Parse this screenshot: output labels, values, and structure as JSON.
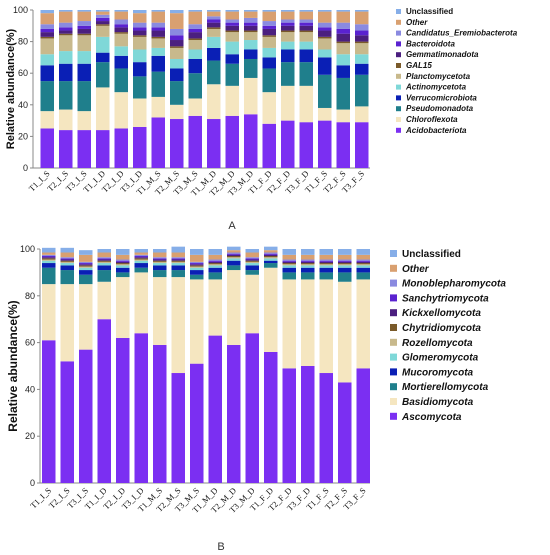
{
  "chart_data": [
    {
      "type": "bar",
      "stacked": true,
      "panel_label": "A",
      "ylabel": "Relative abundance(%)",
      "ylim": [
        0,
        100
      ],
      "yticks": [
        0,
        20,
        40,
        60,
        80,
        100
      ],
      "categories": [
        "T1_I_S",
        "T2_I_S",
        "T3_I_S",
        "T1_I_D",
        "T2_I_D",
        "T3_I_D",
        "T1_M_S",
        "T2_M_S",
        "T3_M_S",
        "T1_M_D",
        "T2_M_D",
        "T3_M_D",
        "T1_F_D",
        "T2_F_D",
        "T3_F_D",
        "T1_F_S",
        "T2_F_S",
        "T3_F_S"
      ],
      "legend_order": [
        "Unclassified",
        "Other",
        "Candidatus_Eremiobacterota",
        "Bacteroidota",
        "Gemmatimonadota",
        "GAL15",
        "Planctomycetota",
        "Actinomycetota",
        "Verrucomicrobiota",
        "Pseudomonadota",
        "Chloroflexota",
        "Acidobacteriota"
      ],
      "legend_italic": true,
      "series": [
        {
          "name": "Acidobacteriota",
          "color": "#7b2ff2",
          "values": [
            25,
            24,
            24,
            24,
            25,
            26,
            32,
            31,
            33,
            31,
            33,
            34,
            28,
            30,
            29,
            30,
            29,
            29
          ]
        },
        {
          "name": "Chloroflexota",
          "color": "#f5e6c0",
          "values": [
            11,
            13,
            12,
            27,
            23,
            18,
            13,
            9,
            11,
            22,
            19,
            23,
            20,
            22,
            23,
            8,
            8,
            10
          ]
        },
        {
          "name": "Pseudomonadota",
          "color": "#1f7f8c",
          "values": [
            19,
            18,
            19,
            16,
            15,
            14,
            16,
            15,
            16,
            15,
            14,
            12,
            15,
            15,
            15,
            21,
            20,
            20
          ]
        },
        {
          "name": "Verrucomicrobiota",
          "color": "#0a1fb5",
          "values": [
            10,
            11,
            11,
            6,
            8,
            9,
            10,
            8,
            9,
            8,
            6,
            6,
            7,
            8,
            8,
            11,
            8,
            7
          ]
        },
        {
          "name": "Actinomycetota",
          "color": "#7fd8d8",
          "values": [
            7,
            8,
            8,
            10,
            6,
            8,
            5,
            6,
            6,
            7,
            8,
            6,
            6,
            5,
            5,
            5,
            7,
            6
          ]
        },
        {
          "name": "Planctomycetota",
          "color": "#c8b98c",
          "values": [
            10,
            10,
            10,
            7,
            8,
            8,
            6,
            7,
            6,
            5,
            6,
            5,
            7,
            6,
            6,
            7,
            7,
            7
          ]
        },
        {
          "name": "GAL15",
          "color": "#7a5a2a",
          "values": [
            1,
            1,
            1,
            1,
            1,
            1,
            1,
            1,
            1,
            1,
            1,
            1,
            1,
            1,
            1,
            1,
            1,
            1
          ]
        },
        {
          "name": "Gemmatimonadota",
          "color": "#4b1f7f",
          "values": [
            3,
            2,
            3,
            2,
            3,
            3,
            4,
            4,
            4,
            3,
            3,
            3,
            4,
            3,
            3,
            4,
            5,
            4
          ]
        },
        {
          "name": "Bacteroidota",
          "color": "#5a22d0",
          "values": [
            2,
            2,
            2,
            2,
            2,
            2,
            2,
            3,
            2,
            2,
            2,
            2,
            2,
            2,
            2,
            2,
            3,
            3
          ]
        },
        {
          "name": "Candidatus_Eremiobacterota",
          "color": "#8a8ae0",
          "values": [
            3,
            3,
            3,
            2,
            3,
            3,
            3,
            4,
            3,
            2,
            2,
            3,
            3,
            2,
            2,
            3,
            4,
            4
          ]
        },
        {
          "name": "Other",
          "color": "#d9a070",
          "values": [
            7,
            7,
            6,
            2,
            5,
            6,
            7,
            10,
            8,
            3,
            5,
            4,
            6,
            5,
            5,
            7,
            7,
            8
          ]
        },
        {
          "name": "Unclassified",
          "color": "#86aee8",
          "values": [
            2,
            1,
            1,
            1,
            1,
            2,
            1,
            2,
            1,
            1,
            1,
            1,
            1,
            1,
            1,
            1,
            1,
            1
          ]
        }
      ]
    },
    {
      "type": "bar",
      "stacked": true,
      "panel_label": "B",
      "ylabel": "Relative abundance(%)",
      "ylim": [
        0,
        100
      ],
      "yticks": [
        0,
        20,
        40,
        60,
        80,
        100
      ],
      "categories": [
        "T1_I_S",
        "T2_I_S",
        "T3_I_S",
        "T1_I_D",
        "T2_I_D",
        "T3_I_D",
        "T1_M_S",
        "T2_M_S",
        "T3_M_S",
        "T1_M_D",
        "T2_M_D",
        "T3_M_D",
        "T1_F_D",
        "T2_F_D",
        "T3_F_D",
        "T1_F_S",
        "T2_F_S",
        "T3_F_S"
      ],
      "legend_order": [
        "Unclassified",
        "Other",
        "Monoblepharomycota",
        "Sanchytriomycota",
        "Kickxellomycota",
        "Chytridiomycota",
        "Rozellomycota",
        "Glomeromycota",
        "Mucoromycota",
        "Mortierellomycota",
        "Basidiomycota",
        "Ascomycota"
      ],
      "legend_italic": true,
      "series": [
        {
          "name": "Ascomycota",
          "color": "#7b2ff2",
          "values": [
            61,
            52,
            57,
            70,
            62,
            64,
            59,
            47,
            51,
            63,
            59,
            64,
            56,
            49,
            50,
            47,
            43,
            49
          ]
        },
        {
          "name": "Basidiomycota",
          "color": "#f5e6c0",
          "values": [
            24,
            33,
            28,
            16,
            26,
            26,
            29,
            41,
            36,
            24,
            32,
            25,
            36,
            38,
            37,
            40,
            43,
            38
          ]
        },
        {
          "name": "Mortierellomycota",
          "color": "#1f7f8c",
          "values": [
            7,
            6,
            4,
            5,
            2,
            2,
            3,
            3,
            2,
            3,
            2,
            2,
            2,
            3,
            3,
            3,
            4,
            3
          ]
        },
        {
          "name": "Mucoromycota",
          "color": "#0a1fb5",
          "values": [
            2,
            2,
            2,
            2,
            2,
            2,
            2,
            2,
            2,
            2,
            2,
            2,
            1,
            2,
            2,
            2,
            2,
            2
          ]
        },
        {
          "name": "Glomeromycota",
          "color": "#7fd8d8",
          "values": [
            1,
            1,
            1,
            1,
            1,
            1,
            1,
            1,
            1,
            1,
            1,
            1,
            1,
            1,
            1,
            1,
            1,
            1
          ]
        },
        {
          "name": "Rozellomycota",
          "color": "#c8b98c",
          "values": [
            0.5,
            0.5,
            0.5,
            0.5,
            0.5,
            0.5,
            0.5,
            0.5,
            0.5,
            0.5,
            0.5,
            0.5,
            0.5,
            0.5,
            0.5,
            0.5,
            0.5,
            0.5
          ]
        },
        {
          "name": "Chytridiomycota",
          "color": "#7a5a2a",
          "values": [
            0.5,
            0.5,
            0.5,
            0.5,
            0.5,
            0.5,
            0.5,
            0.5,
            0.5,
            0.5,
            0.5,
            0.5,
            0.5,
            0.5,
            0.5,
            0.5,
            0.5,
            0.5
          ]
        },
        {
          "name": "Kickxellomycota",
          "color": "#4b1f7f",
          "values": [
            0.5,
            0.5,
            0.5,
            0.5,
            0.5,
            0.5,
            0.5,
            0.5,
            0.5,
            0.5,
            0.5,
            0.5,
            0.5,
            0.5,
            0.5,
            0.5,
            0.5,
            0.5
          ]
        },
        {
          "name": "Sanchytriomycota",
          "color": "#5a22d0",
          "values": [
            0.5,
            0.5,
            0.5,
            0.5,
            0.5,
            0.5,
            0.5,
            0.5,
            0.5,
            0.5,
            0.5,
            0.5,
            0.5,
            0.5,
            0.5,
            0.5,
            0.5,
            0.5
          ]
        },
        {
          "name": "Monoblepharomycota",
          "color": "#8a8ae0",
          "values": [
            0.5,
            0.5,
            0.5,
            0.5,
            0.5,
            0.5,
            0.5,
            0.5,
            0.5,
            0.5,
            0.5,
            0.5,
            0.5,
            0.5,
            0.5,
            0.5,
            0.5,
            0.5
          ]
        },
        {
          "name": "Other",
          "color": "#d9a070",
          "values": [
            1,
            2,
            3,
            2,
            2,
            1,
            2,
            2,
            3,
            2,
            1,
            2,
            1,
            2,
            2,
            2,
            2,
            2
          ]
        },
        {
          "name": "Unclassified",
          "color": "#86aee8",
          "values": [
            2,
            2,
            2,
            1.5,
            2.5,
            1.5,
            1.5,
            2.5,
            2.5,
            2.5,
            1.5,
            1.5,
            1.5,
            2.5,
            2.5,
            2.5,
            2.5,
            2.5
          ]
        }
      ]
    }
  ]
}
